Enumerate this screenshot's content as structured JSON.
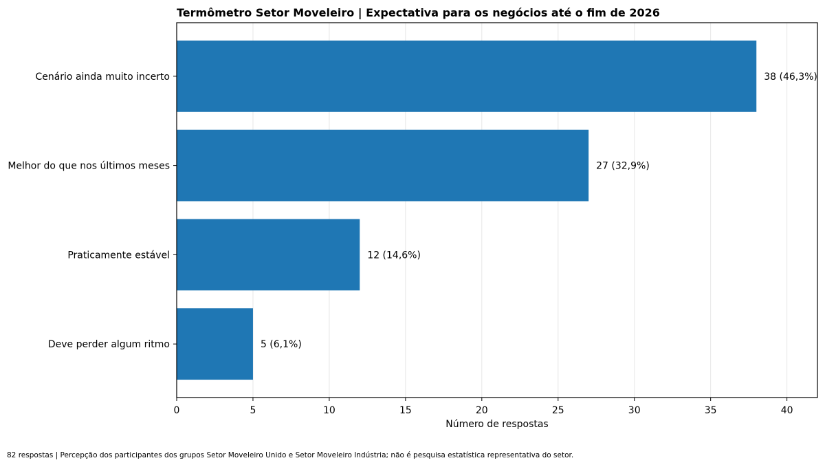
{
  "chart_data": {
    "type": "bar",
    "orientation": "horizontal",
    "title": "Termômetro Setor Moveleiro | Expectativa para os negócios até o fim de 2026",
    "categories": [
      "Cenário ainda muito incerto",
      "Melhor do que nos últimos meses",
      "Praticamente estável",
      "Deve perder algum ritmo"
    ],
    "values": [
      38,
      27,
      12,
      5
    ],
    "data_labels": [
      "38 (46,3%)",
      "27 (32,9%)",
      "12 (14,6%)",
      "5 (6,1%)"
    ],
    "xlabel": "Número de respostas",
    "xlim": [
      0,
      42
    ],
    "xticks": [
      0,
      5,
      10,
      15,
      20,
      25,
      30,
      35,
      40
    ],
    "grid": "vertical",
    "bar_color": "#1f77b4"
  },
  "footnote": "82 respostas | Percepção dos participantes dos grupos Setor Moveleiro Unido e Setor Moveleiro Indústria; não é pesquisa estatística representativa do setor."
}
